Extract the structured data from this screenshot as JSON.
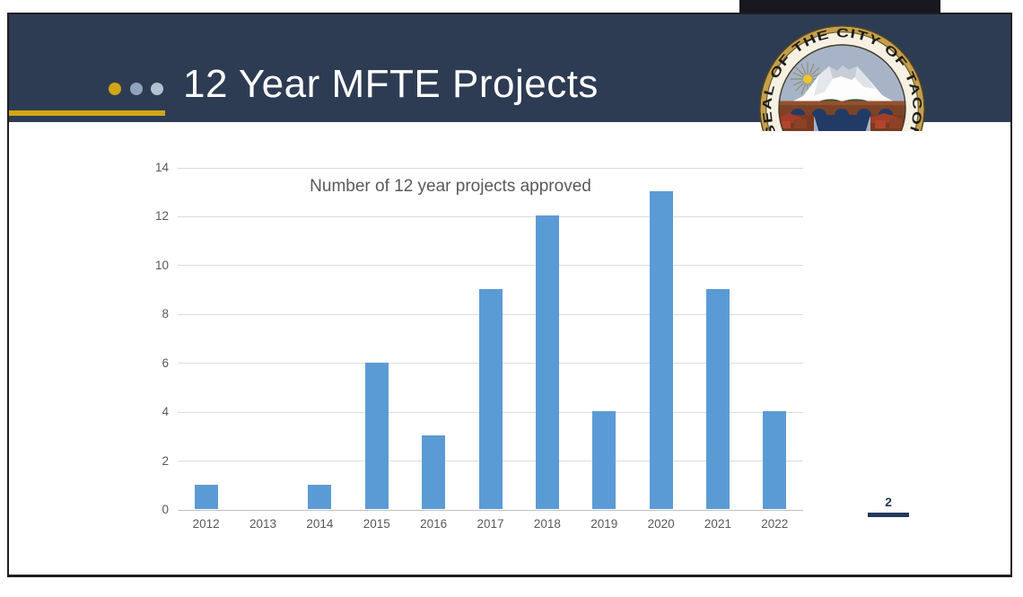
{
  "header": {
    "title": "12 Year MFTE Projects",
    "background_color": "#2e3c53",
    "accent_line_color": "#d0a616",
    "bullet_dots": [
      {
        "name": "gold",
        "color": "#d0a616"
      },
      {
        "name": "blue-gray",
        "color": "#8fa3bd"
      },
      {
        "name": "light-blue-gray",
        "color": "#b5c1d3"
      }
    ]
  },
  "seal": {
    "ring_text": "SEAL OF THE CITY OF TACOMA"
  },
  "chart_data": {
    "type": "bar",
    "title": "Number of 12 year projects approved",
    "categories": [
      "2012",
      "2013",
      "2014",
      "2015",
      "2016",
      "2017",
      "2018",
      "2019",
      "2020",
      "2021",
      "2022"
    ],
    "values": [
      1,
      0,
      1,
      6,
      3,
      9,
      12,
      4,
      13,
      9,
      4
    ],
    "xlabel": "",
    "ylabel": "",
    "ylim": [
      0,
      14
    ],
    "yticks": [
      0,
      2,
      4,
      6,
      8,
      10,
      12,
      14
    ],
    "grid": true,
    "legend_position": "none",
    "bar_color": "#5b9bd5",
    "gridline_color": "#dcdcdc",
    "axis_line_color": "#c0c0c0",
    "axis_text_color": "#595959",
    "title_color": "#595959"
  },
  "footer": {
    "page_number": "2",
    "accent_color": "#24385c"
  }
}
